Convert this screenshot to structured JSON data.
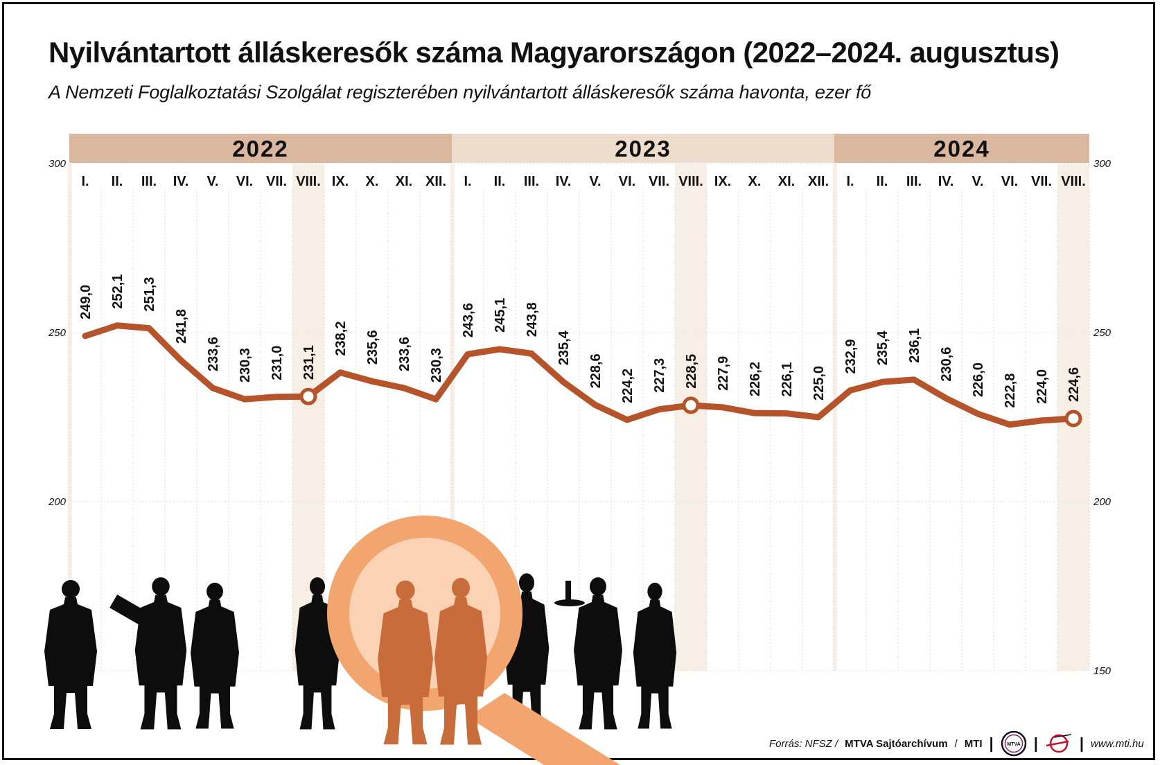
{
  "title": "Nyilvántartott álláskeresők száma Magyarországon (2022–2024. augusztus)",
  "subtitle": "A Nemzeti Foglalkoztatási Szolgálat regiszterében nyilvántartott álláskeresők száma havonta, ezer fő",
  "footer": {
    "source_label": "Forrás: NFSZ /",
    "archive": "MTVA Sajtóarchívum",
    "slash": "/",
    "agency": "MTI",
    "sep1": "|",
    "logo_text": "MTVA",
    "sep2": "|",
    "sep3": "|",
    "url": "www.mti.hu"
  },
  "colors": {
    "line": "#b5532b",
    "year_band_dark": "#d9b89f",
    "year_band_light": "#eedccd",
    "august_band": "#f7eee6",
    "magnifier": "#f2a56f",
    "silhouette": "#0d0d0d",
    "silhouette_highlight": "#c86c3c"
  },
  "icons": [
    "people-silhouettes-icon",
    "magnifying-glass-icon",
    "mtva-logo-icon",
    "mti-logo-icon"
  ],
  "chart_data": {
    "type": "line",
    "title": "Nyilvántartott álláskeresők száma Magyarországon (2022–2024. augusztus)",
    "ylabel": "",
    "xlabel": "",
    "ylim": [
      150,
      300
    ],
    "yticks": [
      "300",
      "250",
      "200",
      "150"
    ],
    "grid": true,
    "years": [
      {
        "label": "2022",
        "months": 12
      },
      {
        "label": "2023",
        "months": 12
      },
      {
        "label": "2024",
        "months": 8
      }
    ],
    "categories": [
      "I.",
      "II.",
      "III.",
      "IV.",
      "V.",
      "VI.",
      "VII.",
      "VIII.",
      "IX.",
      "X.",
      "XI.",
      "XII.",
      "I.",
      "II.",
      "III.",
      "IV.",
      "V.",
      "VI.",
      "VII.",
      "VIII.",
      "IX.",
      "X.",
      "XI.",
      "XII.",
      "I.",
      "II.",
      "III.",
      "IV.",
      "V.",
      "VI.",
      "VII.",
      "VIII."
    ],
    "values": [
      249.0,
      252.1,
      251.3,
      241.8,
      233.6,
      230.3,
      231.0,
      231.1,
      238.2,
      235.6,
      233.6,
      230.3,
      243.6,
      245.1,
      243.8,
      235.4,
      228.6,
      224.2,
      227.3,
      228.5,
      227.9,
      226.2,
      226.1,
      225.0,
      232.9,
      235.4,
      236.1,
      230.6,
      226.0,
      222.8,
      224.0,
      224.6
    ],
    "value_labels": [
      "249,0",
      "252,1",
      "251,3",
      "241,8",
      "233,6",
      "230,3",
      "231,0",
      "231,1",
      "238,2",
      "235,6",
      "233,6",
      "230,3",
      "243,6",
      "245,1",
      "243,8",
      "235,4",
      "228,6",
      "224,2",
      "227,3",
      "228,5",
      "227,9",
      "226,2",
      "226,1",
      "225,0",
      "232,9",
      "235,4",
      "236,1",
      "230,6",
      "226,0",
      "222,8",
      "224,0",
      "224,6"
    ],
    "highlighted_points": [
      7,
      19,
      31
    ]
  }
}
